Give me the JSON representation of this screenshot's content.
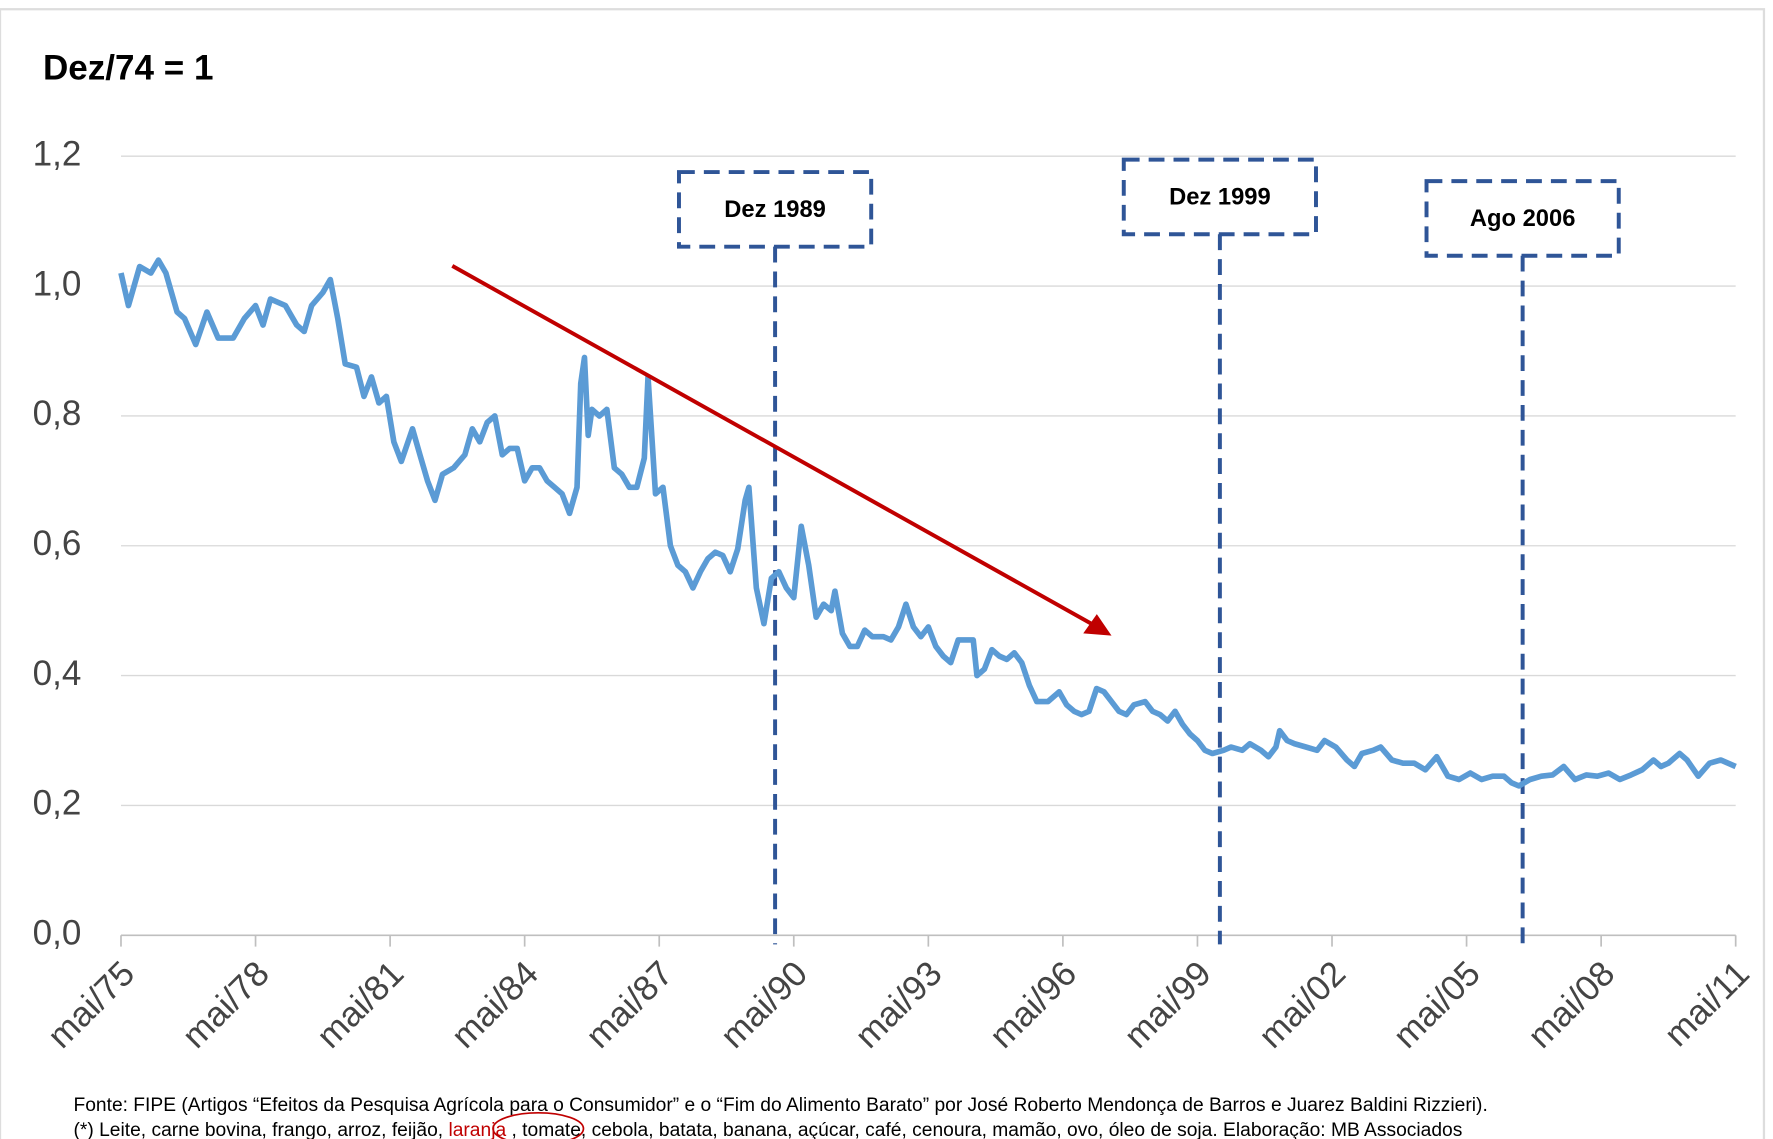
{
  "chart_data": {
    "type": "line",
    "title": "Dez/74 = 1",
    "xlim": [
      0,
      432
    ],
    "xticks": [
      {
        "value": 0,
        "label": "mai/75"
      },
      {
        "value": 36,
        "label": "mai/78"
      },
      {
        "value": 72,
        "label": "mai/81"
      },
      {
        "value": 108,
        "label": "mai/84"
      },
      {
        "value": 144,
        "label": "mai/87"
      },
      {
        "value": 180,
        "label": "mai/90"
      },
      {
        "value": 216,
        "label": "mai/93"
      },
      {
        "value": 252,
        "label": "mai/96"
      },
      {
        "value": 288,
        "label": "mai/99"
      },
      {
        "value": 324,
        "label": "mai/02"
      },
      {
        "value": 360,
        "label": "mai/05"
      },
      {
        "value": 396,
        "label": "mai/08"
      },
      {
        "value": 432,
        "label": "mai/11"
      }
    ],
    "ylim": [
      0,
      1.2
    ],
    "yticks": [
      {
        "value": 0,
        "label": "0,0"
      },
      {
        "value": 0.2,
        "label": "0,2"
      },
      {
        "value": 0.4,
        "label": "0,4"
      },
      {
        "value": 0.6,
        "label": "0,6"
      },
      {
        "value": 0.8,
        "label": "0,8"
      },
      {
        "value": 1.0,
        "label": "1,0"
      },
      {
        "value": 1.2,
        "label": "1,2"
      }
    ],
    "grid": true,
    "series": [
      {
        "color": "#5b9bd5",
        "x": [
          0,
          2,
          5,
          8,
          10,
          12,
          15,
          17,
          20,
          23,
          26,
          30,
          33,
          36,
          38,
          40,
          44,
          47,
          49,
          51,
          54,
          56,
          58,
          60,
          63,
          65,
          67,
          69,
          71,
          73,
          75,
          78,
          80,
          82,
          84,
          86,
          89,
          92,
          94,
          96,
          98,
          100,
          102,
          104,
          106,
          108,
          110,
          112,
          114,
          116,
          118,
          120,
          122,
          123,
          124,
          125,
          126,
          128,
          130,
          132,
          134,
          136,
          138,
          140,
          141,
          143,
          145,
          147,
          149,
          151,
          153,
          155,
          157,
          159,
          161,
          163,
          165,
          167,
          168,
          170,
          172,
          174,
          176,
          178,
          180,
          182,
          184,
          186,
          188,
          190,
          191,
          193,
          195,
          197,
          199,
          201,
          204,
          206,
          208,
          210,
          212,
          214,
          216,
          218,
          220,
          222,
          224,
          226,
          228,
          229,
          231,
          233,
          235,
          237,
          239,
          241,
          243,
          245,
          248,
          251,
          253,
          255,
          257,
          259,
          261,
          263,
          265,
          267,
          269,
          271,
          274,
          276,
          278,
          280,
          282,
          284,
          286,
          288,
          290,
          292,
          295,
          297,
          300,
          302,
          305,
          307,
          309,
          310,
          312,
          314,
          317,
          320,
          322,
          325,
          328,
          330,
          332,
          335,
          337,
          340,
          343,
          346,
          349,
          352,
          355,
          358,
          361,
          364,
          367,
          370,
          372,
          374,
          377,
          380,
          383,
          386,
          389,
          392,
          395,
          398,
          401,
          404,
          407,
          410,
          412,
          414,
          417,
          419,
          422,
          425,
          428,
          432
        ],
        "values": [
          1.02,
          0.97,
          1.03,
          1.02,
          1.04,
          1.02,
          0.96,
          0.95,
          0.91,
          0.96,
          0.92,
          0.92,
          0.95,
          0.97,
          0.94,
          0.98,
          0.97,
          0.94,
          0.93,
          0.97,
          0.99,
          1.01,
          0.95,
          0.88,
          0.875,
          0.83,
          0.86,
          0.82,
          0.83,
          0.76,
          0.73,
          0.78,
          0.74,
          0.7,
          0.67,
          0.71,
          0.72,
          0.74,
          0.78,
          0.76,
          0.79,
          0.8,
          0.74,
          0.75,
          0.75,
          0.7,
          0.72,
          0.72,
          0.7,
          0.69,
          0.68,
          0.65,
          0.69,
          0.85,
          0.89,
          0.77,
          0.81,
          0.8,
          0.81,
          0.72,
          0.71,
          0.69,
          0.69,
          0.735,
          0.86,
          0.68,
          0.69,
          0.6,
          0.57,
          0.56,
          0.535,
          0.56,
          0.58,
          0.59,
          0.585,
          0.56,
          0.595,
          0.67,
          0.69,
          0.535,
          0.48,
          0.55,
          0.56,
          0.535,
          0.52,
          0.63,
          0.57,
          0.49,
          0.51,
          0.5,
          0.53,
          0.465,
          0.445,
          0.445,
          0.47,
          0.46,
          0.46,
          0.455,
          0.475,
          0.51,
          0.475,
          0.46,
          0.475,
          0.445,
          0.43,
          0.42,
          0.455,
          0.455,
          0.455,
          0.4,
          0.41,
          0.44,
          0.43,
          0.425,
          0.435,
          0.42,
          0.385,
          0.36,
          0.36,
          0.375,
          0.355,
          0.345,
          0.34,
          0.345,
          0.38,
          0.375,
          0.36,
          0.345,
          0.34,
          0.355,
          0.36,
          0.345,
          0.34,
          0.33,
          0.345,
          0.325,
          0.31,
          0.3,
          0.285,
          0.28,
          0.285,
          0.29,
          0.285,
          0.295,
          0.285,
          0.275,
          0.29,
          0.315,
          0.3,
          0.295,
          0.29,
          0.285,
          0.3,
          0.29,
          0.27,
          0.26,
          0.28,
          0.285,
          0.29,
          0.27,
          0.265,
          0.265,
          0.255,
          0.275,
          0.245,
          0.24,
          0.25,
          0.24,
          0.245,
          0.245,
          0.235,
          0.23,
          0.24,
          0.245,
          0.247,
          0.26,
          0.24,
          0.247,
          0.245,
          0.25,
          0.24,
          0.247,
          0.255,
          0.27,
          0.26,
          0.265,
          0.28,
          0.27,
          0.245,
          0.265,
          0.27,
          0.26
        ]
      }
    ],
    "annotations": [
      {
        "x": 175,
        "text": "Dez 1989"
      },
      {
        "x": 294,
        "text": "Dez 1999"
      },
      {
        "x": 375,
        "text": "Ago 2006"
      }
    ],
    "source": "Fonte: FIPE (Artigos “Efeitos da Pesquisa Agrícola para o Consumidor” e o “Fim do Alimento Barato” por José Roberto Mendonça de Barros e Juarez Baldini Rizzieri).",
    "footnote": [
      "(*) Leite, carne bovina, frango, arroz, feijão,",
      "laranja",
      ", tomate, cebola, batata, banana, açúcar, café, cenoura, mamão, ovo, óleo de soja. Elaboração: MB Associados"
    ]
  }
}
